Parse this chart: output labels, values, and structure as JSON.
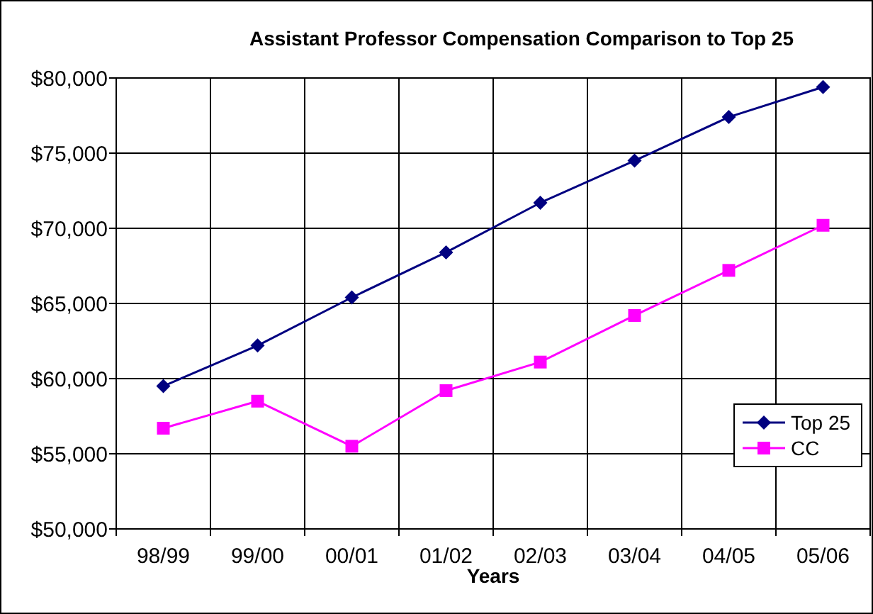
{
  "chart_data": {
    "type": "line",
    "title": "Assistant Professor Compensation Comparison to Top 25",
    "xlabel": "Years",
    "categories": [
      "98/99",
      "99/00",
      "00/01",
      "01/02",
      "02/03",
      "03/04",
      "04/05",
      "05/06"
    ],
    "series": [
      {
        "name": "Top 25",
        "color": "#000080",
        "marker": "diamond",
        "values": [
          59500,
          62200,
          65400,
          68400,
          71700,
          74500,
          77400,
          79400
        ]
      },
      {
        "name": "CC",
        "color": "#ff00ff",
        "marker": "square",
        "values": [
          56700,
          58500,
          55500,
          59200,
          61100,
          64200,
          67200,
          70200
        ]
      }
    ],
    "ylim": [
      50000,
      80000
    ],
    "yticks": [
      {
        "value": 50000,
        "label": "$50,000"
      },
      {
        "value": 55000,
        "label": "$55,000"
      },
      {
        "value": 60000,
        "label": "$60,000"
      },
      {
        "value": 65000,
        "label": "$65,000"
      },
      {
        "value": 70000,
        "label": "$70,000"
      },
      {
        "value": 75000,
        "label": "$75,000"
      },
      {
        "value": 80000,
        "label": "$80,000"
      }
    ],
    "grid": true,
    "legend": "right",
    "line_style": "solid"
  }
}
